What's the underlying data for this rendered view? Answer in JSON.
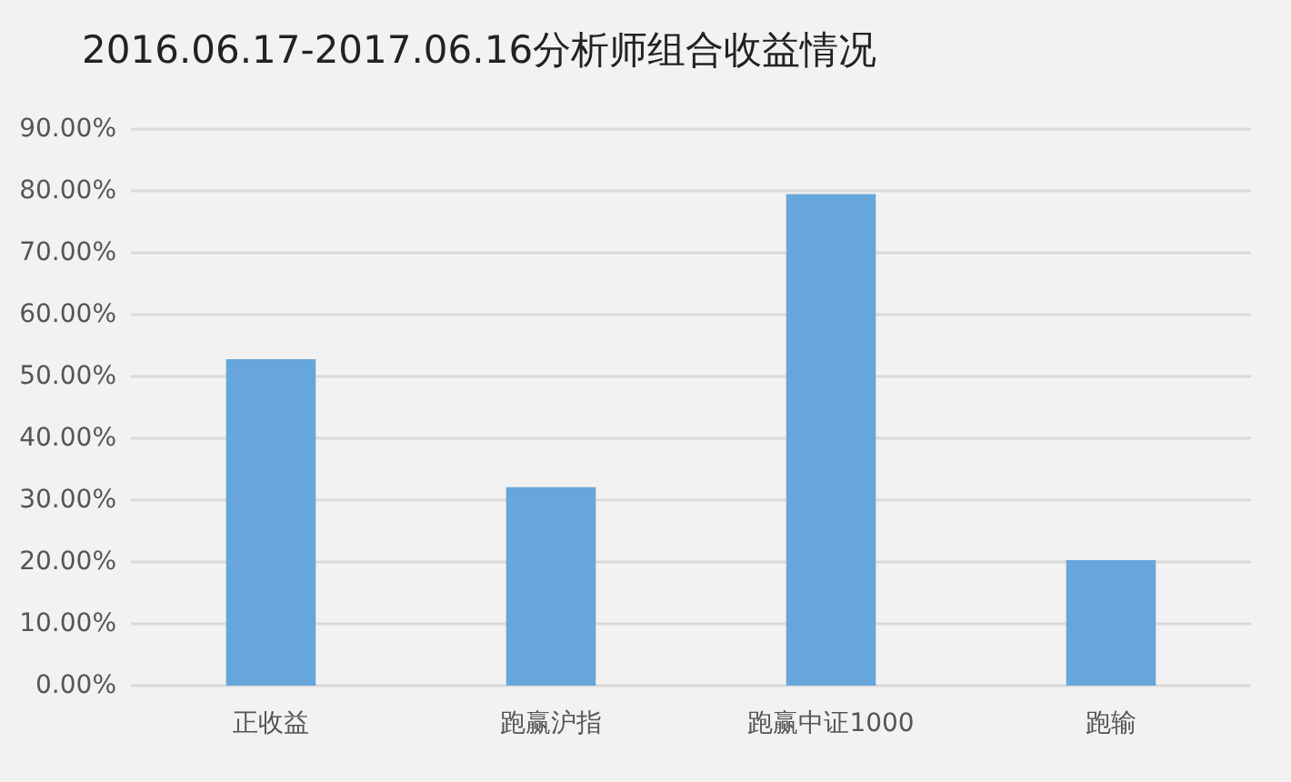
{
  "chart_data": {
    "type": "bar",
    "title": "2016.06.17-2017.06.16分析师组合收益情况",
    "categories": [
      "正收益",
      "跑赢沪指",
      "跑赢中证1000",
      "跑输"
    ],
    "values": [
      52.8,
      32.1,
      79.5,
      20.3
    ],
    "color": "#67a6da",
    "ylim": [
      0,
      90
    ],
    "yticks": [
      {
        "value": 0,
        "label": "0.00%"
      },
      {
        "value": 10,
        "label": "10.00%"
      },
      {
        "value": 20,
        "label": "20.00%"
      },
      {
        "value": 30,
        "label": "30.00%"
      },
      {
        "value": 40,
        "label": "40.00%"
      },
      {
        "value": 50,
        "label": "50.00%"
      },
      {
        "value": 60,
        "label": "60.00%"
      },
      {
        "value": 70,
        "label": "70.00%"
      },
      {
        "value": 80,
        "label": "80.00%"
      },
      {
        "value": 90,
        "label": "90.00%"
      }
    ],
    "grid": "y"
  }
}
